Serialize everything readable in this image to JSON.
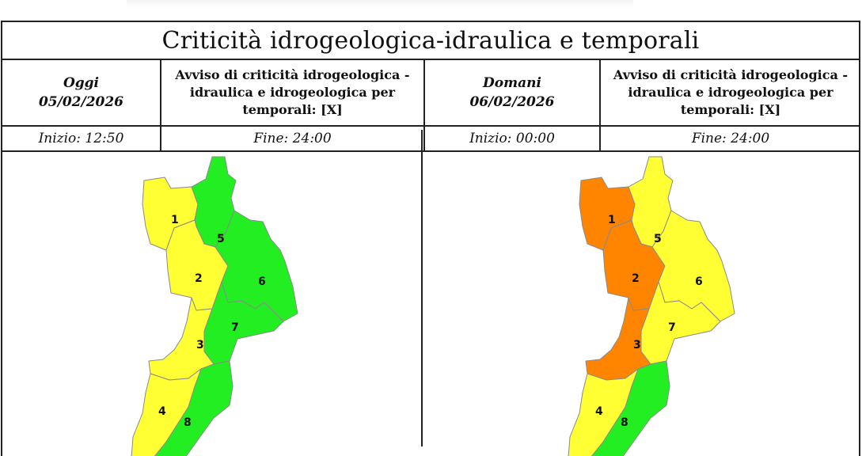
{
  "title": "Criticità idrogeologica-idraulica e temporali",
  "today": {
    "day_label": "Oggi",
    "date": "05/02/2026",
    "warning": "Avviso di criticità idrogeologica - idraulica e idrogeologica per temporali: [X]",
    "start": "Inizio: 12:50",
    "end": "Fine: 24:00"
  },
  "tomorrow": {
    "day_label": "Domani",
    "date": "06/02/2026",
    "warning": "Avviso di criticità idrogeologica - idraulica e idrogeologica per temporali: [X]",
    "start": "Inizio: 00:00",
    "end": "Fine: 24:00"
  },
  "colors": {
    "yellow": "#ffff33",
    "green": "#22ee22",
    "orange": "#ff8400",
    "border": "#8a8a8a"
  },
  "maps": {
    "today": {
      "zones": [
        {
          "id": "1",
          "label": "1",
          "level": "yellow"
        },
        {
          "id": "2",
          "label": "2",
          "level": "yellow"
        },
        {
          "id": "3",
          "label": "3",
          "level": "yellow"
        },
        {
          "id": "4",
          "label": "4",
          "level": "yellow"
        },
        {
          "id": "5",
          "label": "5",
          "level": "green"
        },
        {
          "id": "6",
          "label": "6",
          "level": "green"
        },
        {
          "id": "7",
          "label": "7",
          "level": "green"
        },
        {
          "id": "8",
          "label": "8",
          "level": "green"
        }
      ]
    },
    "tomorrow": {
      "zones": [
        {
          "id": "1",
          "label": "1",
          "level": "orange"
        },
        {
          "id": "2",
          "label": "2",
          "level": "orange"
        },
        {
          "id": "3",
          "label": "3",
          "level": "orange"
        },
        {
          "id": "4",
          "label": "4",
          "level": "yellow"
        },
        {
          "id": "5",
          "label": "5",
          "level": "yellow"
        },
        {
          "id": "6",
          "label": "6",
          "level": "yellow"
        },
        {
          "id": "7",
          "label": "7",
          "level": "yellow"
        },
        {
          "id": "8",
          "label": "8",
          "level": "green"
        }
      ]
    }
  }
}
